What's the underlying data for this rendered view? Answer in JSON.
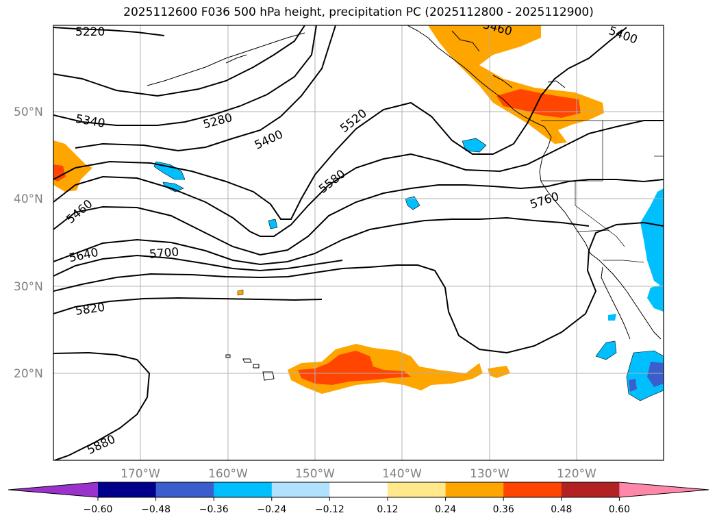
{
  "title": "2025112600 F036 500 hPa height, precipitation PC (2025112800 - 2025112900)",
  "lat_labels": [
    "50°N",
    "40°N",
    "30°N",
    "20°N"
  ],
  "lon_labels": [
    "170°W",
    "160°W",
    "150°W",
    "140°W",
    "130°W",
    "120°W"
  ],
  "contour_labels": [
    "5220",
    "5460",
    "5400",
    "5340",
    "5280",
    "5400",
    "5520",
    "5460",
    "5580",
    "5760",
    "5640",
    "5700",
    "5820",
    "5880"
  ],
  "colorbar": {
    "ticks": [
      "−0.60",
      "−0.48",
      "−0.36",
      "−0.24",
      "−0.12",
      "0.12",
      "0.24",
      "0.36",
      "0.48",
      "0.60"
    ],
    "colors": [
      "#9933cc",
      "#00008b",
      "#3a5fcd",
      "#00bfff",
      "#b0e2ff",
      "#ffffff",
      "#ffe98a",
      "#ffa500",
      "#ff4500",
      "#b22222",
      "#ff88aa"
    ]
  }
}
